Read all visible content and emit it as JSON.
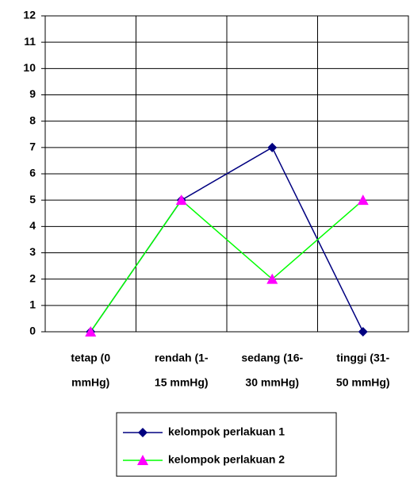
{
  "chart_data": {
    "type": "line",
    "categories": [
      [
        "tetap (0",
        "mmHg)"
      ],
      [
        "rendah (1-",
        "15 mmHg)"
      ],
      [
        "sedang (16-",
        "30 mmHg)"
      ],
      [
        "tinggi (31-",
        "50 mmHg)"
      ]
    ],
    "series": [
      {
        "name": "kelompok perlakuan 1",
        "color": "#000080",
        "marker": "diamond",
        "marker_color": "#000080",
        "values": [
          0,
          5,
          7,
          0
        ]
      },
      {
        "name": "kelompok perlakuan 2",
        "color": "#00ff00",
        "marker": "triangle",
        "marker_color": "#ff00ff",
        "values": [
          0,
          5,
          2,
          5
        ]
      }
    ],
    "ylim": [
      0,
      12
    ],
    "yticks": [
      0,
      1,
      2,
      3,
      4,
      5,
      6,
      7,
      8,
      9,
      10,
      11,
      12
    ],
    "grid": true,
    "legend": "bottom"
  }
}
